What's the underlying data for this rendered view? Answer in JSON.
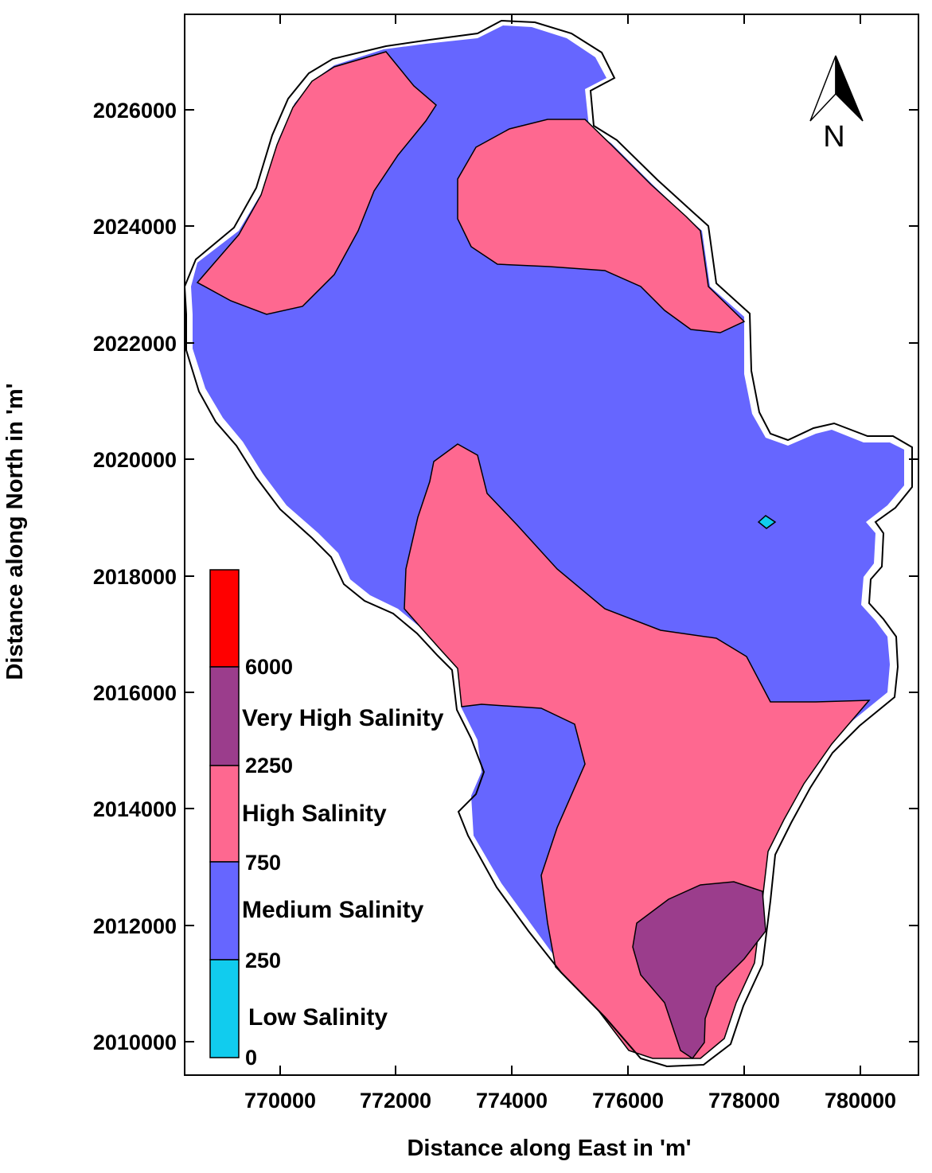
{
  "map": {
    "x_axis": {
      "title": "Distance along East in 'm'",
      "ticks": [
        "770000",
        "772000",
        "774000",
        "776000",
        "778000",
        "780000"
      ]
    },
    "y_axis": {
      "title": "Distance along North in 'm'",
      "ticks": [
        "2026000",
        "2024000",
        "2022000",
        "2020000",
        "2018000",
        "2016000",
        "2014000",
        "2012000",
        "2010000"
      ]
    },
    "north_arrow": {
      "icon": "north-arrow-icon",
      "letter": "N"
    },
    "legend": {
      "breaks": [
        "6000",
        "2250",
        "750",
        "250",
        "0"
      ],
      "classes": [
        {
          "label": "",
          "color": "#ff0000"
        },
        {
          "label": "Very High Salinity",
          "color": "#9b3d8c"
        },
        {
          "label": "High Salinity",
          "color": "#fe6890"
        },
        {
          "label": "Medium Salinity",
          "color": "#6666ff"
        },
        {
          "label": "Low Salinity",
          "color": "#11ccee"
        }
      ]
    }
  }
}
